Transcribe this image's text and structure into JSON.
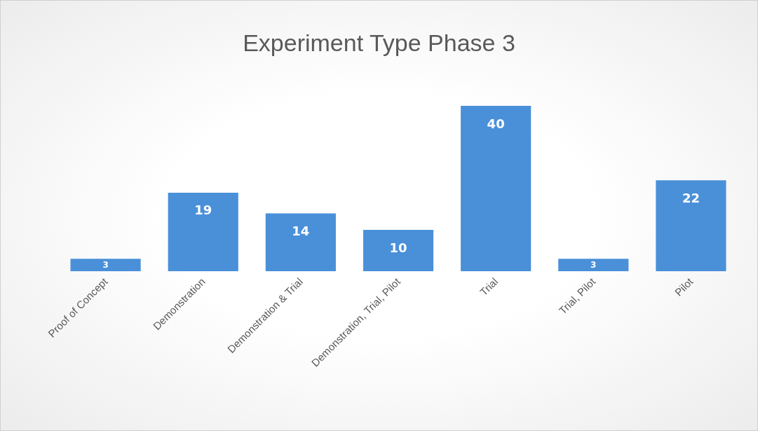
{
  "chart_data": {
    "type": "bar",
    "title": "Experiment Type Phase 3",
    "categories": [
      "Proof of Concept",
      "Demonstration",
      "Demonstration & Trial",
      "Demonstration, Trial, Pilot",
      "Trial",
      "Trial, Pilot",
      "Pilot"
    ],
    "values": [
      3,
      19,
      14,
      10,
      40,
      3,
      22
    ],
    "color": "#4a90d9",
    "data_labels": true
  }
}
